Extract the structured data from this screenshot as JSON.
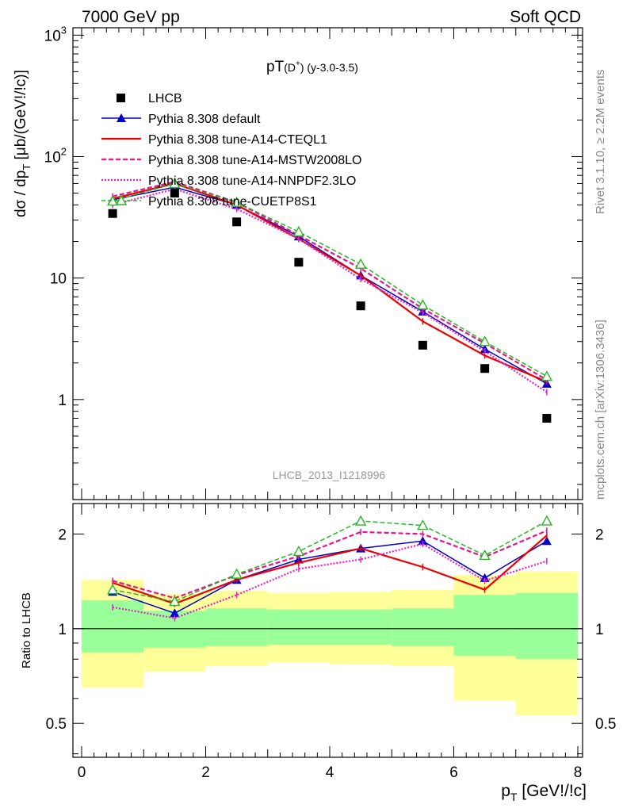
{
  "header": {
    "left": "7000 GeV pp",
    "right": "Soft QCD"
  },
  "side_labels": {
    "rivet": "Rivet 3.1.10, ≥ 2.2M events",
    "mcplots": "mcplots.cern.ch [arXiv:1306.3436]"
  },
  "watermark": "LHCB_2013_I1218996",
  "colors": {
    "data": "#000000",
    "default": "#0000cc",
    "cteql1": "#ee0000",
    "mstw": "#e8158f",
    "nnpdf": "#e820cc",
    "cuetp": "#22bb22",
    "band_inner": "#99ff99",
    "band_outer": "#ffff99"
  },
  "chart_data": [
    {
      "type": "line",
      "title_main": "pT",
      "title_sub": "(D",
      "title_sup": "+",
      "title_close": ")",
      "title_rest": " (y-3.0-3.5)",
      "ylabel_main": "dσ / dp",
      "ylabel_sub": "T",
      "ylabel_rest": " [μb/(GeV!/!c)]",
      "yscale": "log",
      "ylim": [
        0.15,
        1150
      ],
      "xlim": [
        -0.2,
        8.2
      ],
      "ytick_labels": [
        {
          "v": 1,
          "label": "1"
        },
        {
          "v": 10,
          "label": "10"
        },
        {
          "v": 100,
          "label": "10",
          "sup": "2"
        },
        {
          "v": 1000,
          "label": "10",
          "sup": "3"
        }
      ],
      "x": [
        0.5,
        1.5,
        2.5,
        3.5,
        4.5,
        5.5,
        6.5,
        7.5
      ],
      "data": {
        "name": "LHCB",
        "values": [
          34,
          50,
          29,
          13.5,
          5.9,
          2.8,
          1.8,
          0.7
        ]
      },
      "series": [
        {
          "name": "Pythia 8.308 default",
          "key": "default",
          "style": "solid",
          "marker": "triangle-filled",
          "values": [
            44,
            56,
            40,
            22,
            10.5,
            5.3,
            2.6,
            1.35
          ]
        },
        {
          "name": "Pythia 8.308 tune-A14-CTEQL1",
          "key": "cteql1",
          "style": "solid",
          "marker": "none",
          "values": [
            45,
            60,
            40,
            21,
            10.5,
            4.4,
            2.3,
            1.4
          ]
        },
        {
          "name": "Pythia 8.308 tune-A14-MSTW2008LO",
          "key": "mstw",
          "style": "dashed",
          "marker": "none",
          "values": [
            47,
            62,
            42,
            22.5,
            12,
            5.6,
            2.9,
            1.45
          ]
        },
        {
          "name": "Pythia 8.308 tune-A14-NNPDF2.3LO",
          "key": "nnpdf",
          "style": "dotted",
          "marker": "none",
          "values": [
            40,
            54,
            37,
            21,
            9.8,
            5.2,
            2.5,
            1.15
          ]
        },
        {
          "name": "Pythia 8.308 tune-CUETP8S1",
          "key": "cuetp",
          "style": "dashed",
          "marker": "triangle-open",
          "values": [
            43,
            60,
            42,
            24,
            13,
            6,
            3,
            1.55
          ]
        }
      ]
    },
    {
      "type": "line",
      "ylabel": "Ratio to LHCB",
      "xlabel_main": "p",
      "xlabel_sub": "T",
      "xlabel_rest": " [GeV!/!c]",
      "yscale": "log",
      "ylim": [
        0.39,
        2.5
      ],
      "xlim": [
        -0.2,
        8.2
      ],
      "ytick_labels": [
        {
          "v": 0.5,
          "label": "0.5"
        },
        {
          "v": 1,
          "label": "1"
        },
        {
          "v": 2,
          "label": "2"
        }
      ],
      "xtick_labels": [
        {
          "v": 0,
          "label": "0"
        },
        {
          "v": 2,
          "label": "2"
        },
        {
          "v": 4,
          "label": "4"
        },
        {
          "v": 6,
          "label": "6"
        },
        {
          "v": 8,
          "label": "8"
        }
      ],
      "bands": [
        {
          "x0": 0,
          "x1": 1,
          "inner": [
            0.84,
            1.23
          ],
          "outer": [
            0.65,
            1.43
          ]
        },
        {
          "x0": 1,
          "x1": 2,
          "inner": [
            0.87,
            1.14
          ],
          "outer": [
            0.73,
            1.29
          ]
        },
        {
          "x0": 2,
          "x1": 3,
          "inner": [
            0.88,
            1.16
          ],
          "outer": [
            0.76,
            1.32
          ]
        },
        {
          "x0": 3,
          "x1": 4,
          "inner": [
            0.89,
            1.15
          ],
          "outer": [
            0.78,
            1.3
          ]
        },
        {
          "x0": 4,
          "x1": 5,
          "inner": [
            0.89,
            1.15
          ],
          "outer": [
            0.77,
            1.31
          ]
        },
        {
          "x0": 5,
          "x1": 6,
          "inner": [
            0.88,
            1.16
          ],
          "outer": [
            0.76,
            1.33
          ]
        },
        {
          "x0": 6,
          "x1": 7,
          "inner": [
            0.82,
            1.28
          ],
          "outer": [
            0.59,
            1.48
          ]
        },
        {
          "x0": 7,
          "x1": 8,
          "inner": [
            0.8,
            1.3
          ],
          "outer": [
            0.53,
            1.52
          ]
        }
      ],
      "x": [
        0.5,
        1.5,
        2.5,
        3.5,
        4.5,
        5.5,
        6.5,
        7.5
      ],
      "series": [
        {
          "key": "default",
          "style": "solid",
          "marker": "triangle-filled",
          "values": [
            1.31,
            1.12,
            1.43,
            1.66,
            1.8,
            1.9,
            1.45,
            1.9
          ]
        },
        {
          "key": "cteql1",
          "style": "solid",
          "marker": "none",
          "values": [
            1.4,
            1.2,
            1.43,
            1.62,
            1.8,
            1.57,
            1.33,
            1.98
          ]
        },
        {
          "key": "mstw",
          "style": "dashed",
          "marker": "none",
          "values": [
            1.42,
            1.25,
            1.48,
            1.7,
            2.03,
            2.0,
            1.69,
            2.05
          ]
        },
        {
          "key": "nnpdf",
          "style": "dotted",
          "marker": "none",
          "values": [
            1.17,
            1.08,
            1.28,
            1.55,
            1.66,
            1.86,
            1.42,
            1.64
          ]
        },
        {
          "key": "cuetp",
          "style": "dashed",
          "marker": "triangle-open",
          "values": [
            1.33,
            1.22,
            1.49,
            1.76,
            2.2,
            2.13,
            1.71,
            2.2
          ]
        }
      ]
    }
  ]
}
